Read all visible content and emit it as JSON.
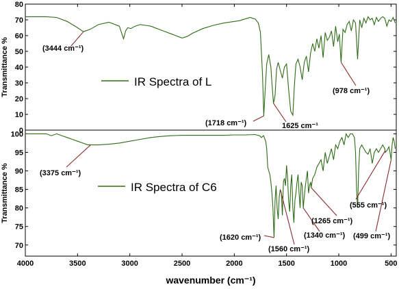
{
  "chart_data": [
    {
      "type": "line",
      "panel": "top",
      "ylabel": "Transmittance %",
      "xlim": [
        4000,
        450
      ],
      "ylim": [
        0,
        80
      ],
      "y_ticks": [
        "0",
        "10",
        "20",
        "30",
        "40",
        "50",
        "60",
        "70",
        "80"
      ],
      "grid": false,
      "legend": "center-left",
      "series": [
        {
          "name": "IR Spectra of L",
          "color": "#2e6b16",
          "x": [
            4000,
            3800,
            3700,
            3600,
            3500,
            3444,
            3380,
            3300,
            3200,
            3100,
            3060,
            3040,
            3020,
            2990,
            2950,
            2900,
            2850,
            2800,
            2700,
            2600,
            2500,
            2450,
            2400,
            2300,
            2200,
            2100,
            2000,
            1950,
            1900,
            1850,
            1800,
            1770,
            1750,
            1730,
            1718,
            1705,
            1690,
            1670,
            1650,
            1640,
            1625,
            1610,
            1595,
            1580,
            1560,
            1540,
            1520,
            1500,
            1480,
            1460,
            1440,
            1425,
            1410,
            1390,
            1370,
            1350,
            1330,
            1310,
            1290,
            1270,
            1250,
            1230,
            1210,
            1190,
            1170,
            1150,
            1130,
            1110,
            1090,
            1070,
            1050,
            1030,
            1010,
            995,
            978,
            960,
            940,
            920,
            900,
            880,
            860,
            840,
            820,
            800,
            780,
            760,
            740,
            720,
            700,
            680,
            660,
            640,
            620,
            600,
            580,
            560,
            540,
            520,
            500,
            480,
            460
          ],
          "y": [
            72,
            72,
            71.5,
            69,
            65,
            62.5,
            64,
            67,
            68.5,
            66,
            58,
            63,
            65,
            64.5,
            66,
            67,
            66.5,
            66,
            63.5,
            61,
            58.5,
            59.5,
            61.5,
            64.5,
            66.5,
            68,
            69,
            69.5,
            70.5,
            71.5,
            70.5,
            68,
            62,
            35,
            9,
            25,
            42,
            48,
            40,
            30,
            17,
            22,
            39,
            43,
            38,
            33,
            40,
            42,
            26,
            12,
            9.5,
            28,
            42,
            45,
            40,
            32,
            43,
            47,
            37,
            49,
            55,
            50,
            58,
            52,
            60,
            46,
            62,
            57,
            59,
            63,
            53,
            66,
            56,
            61,
            43,
            64,
            62,
            67,
            69,
            63,
            70,
            68,
            45,
            70,
            65,
            71,
            68,
            72,
            70,
            71,
            67,
            71.5,
            69,
            71,
            72,
            71,
            66,
            70,
            69,
            71.5,
            68
          ]
        }
      ],
      "annotations": [
        {
          "text": "(3444 cm⁻¹)",
          "x": 3444,
          "y": 62.5
        },
        {
          "text": "(1718 cm⁻¹)",
          "x": 1718,
          "y": 9
        },
        {
          "text": "1625 cm⁻¹",
          "x": 1625,
          "y": 17
        },
        {
          "text": "(978 cm⁻¹)",
          "x": 978,
          "y": 43
        }
      ]
    },
    {
      "type": "line",
      "panel": "bottom",
      "ylabel": "Transmittance %",
      "xlabel": "wavenumber (cm⁻¹)",
      "xlim": [
        4000,
        450
      ],
      "ylim": [
        67,
        101
      ],
      "x_ticks": [
        "4000",
        "3500",
        "3000",
        "2500",
        "2000",
        "1500",
        "1000",
        "500"
      ],
      "y_ticks": [
        "70",
        "75",
        "80",
        "85",
        "90",
        "95",
        "100"
      ],
      "grid": false,
      "legend": "center-left",
      "series": [
        {
          "name": "IR Spectra of C6",
          "color": "#2e6b16",
          "x": [
            4000,
            3900,
            3800,
            3750,
            3700,
            3650,
            3600,
            3550,
            3500,
            3450,
            3400,
            3375,
            3300,
            3200,
            3100,
            3000,
            2900,
            2800,
            2700,
            2600,
            2500,
            2400,
            2300,
            2200,
            2100,
            2000,
            1900,
            1800,
            1760,
            1740,
            1720,
            1700,
            1690,
            1680,
            1670,
            1660,
            1650,
            1640,
            1630,
            1620,
            1610,
            1600,
            1590,
            1580,
            1570,
            1560,
            1550,
            1540,
            1530,
            1520,
            1510,
            1500,
            1490,
            1480,
            1470,
            1460,
            1450,
            1440,
            1430,
            1420,
            1410,
            1400,
            1390,
            1380,
            1370,
            1360,
            1350,
            1340,
            1330,
            1320,
            1310,
            1300,
            1290,
            1280,
            1270,
            1265,
            1250,
            1230,
            1210,
            1190,
            1170,
            1150,
            1130,
            1110,
            1090,
            1070,
            1050,
            1030,
            1010,
            990,
            970,
            950,
            930,
            910,
            890,
            870,
            850,
            840,
            830,
            820,
            810,
            800,
            780,
            760,
            740,
            720,
            700,
            680,
            660,
            640,
            620,
            600,
            580,
            560,
            555,
            540,
            520,
            510,
            499,
            490,
            480,
            470,
            460
          ],
          "y": [
            100,
            100,
            100,
            99.5,
            100,
            99.5,
            99,
            98.5,
            98,
            97.5,
            97,
            97,
            97,
            97.2,
            97.5,
            98,
            98.5,
            99,
            99.3,
            99.5,
            99.6,
            99.6,
            99.6,
            99.6,
            99.6,
            99.7,
            99.7,
            99.8,
            99.5,
            99,
            99.5,
            98,
            96,
            91,
            90,
            89,
            87,
            84,
            80,
            72,
            82,
            86,
            80,
            77,
            83,
            85,
            84,
            78,
            87,
            88,
            86,
            91.5,
            88,
            82,
            79,
            86,
            89,
            80,
            76,
            82,
            84,
            87,
            89,
            84,
            80,
            87,
            86,
            80,
            83,
            86,
            88,
            90,
            84,
            86,
            87,
            85.5,
            88,
            89,
            91,
            92,
            93,
            90,
            95,
            92,
            94,
            96,
            93,
            97,
            96,
            98,
            99,
            97,
            100,
            99,
            100,
            100,
            99,
            95,
            85,
            80,
            90,
            96,
            97,
            96,
            95,
            94.5,
            96,
            92,
            95,
            96,
            95,
            96,
            97,
            96,
            95,
            95.5,
            96.5,
            95,
            93,
            97,
            99,
            98,
            96
          ]
        }
      ],
      "annotations": [
        {
          "text": "(3375 cm⁻¹)",
          "x": 3375,
          "y": 97
        },
        {
          "text": "(1620 cm⁻¹)",
          "x": 1620,
          "y": 72
        },
        {
          "text": "(1560 cm⁻¹)",
          "x": 1560,
          "y": 85
        },
        {
          "text": "(1340 cm⁻¹)",
          "x": 1340,
          "y": 80
        },
        {
          "text": "(1265 cm⁻¹)",
          "x": 1265,
          "y": 85.5
        },
        {
          "text": "(555 cm⁻¹)",
          "x": 555,
          "y": 95.5
        },
        {
          "text": "(499 cm⁻¹)",
          "x": 499,
          "y": 93
        }
      ]
    }
  ]
}
